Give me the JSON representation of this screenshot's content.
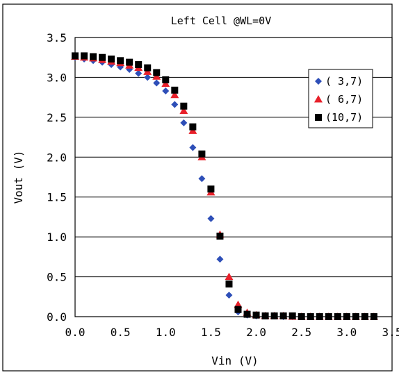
{
  "chart_data": {
    "type": "scatter",
    "title": "Left Cell @WL=0V",
    "xlabel": "Vin (V)",
    "ylabel": "Vout (V)",
    "xlim": [
      0,
      3.5
    ],
    "ylim": [
      0,
      3.5
    ],
    "x_ticks": [
      "0.0",
      "0.5",
      "1.0",
      "1.5",
      "2.0",
      "2.5",
      "3.0",
      "3.5"
    ],
    "y_ticks": [
      "0.0",
      "0.5",
      "1.0",
      "1.5",
      "2.0",
      "2.5",
      "3.0",
      "3.5"
    ],
    "grid": "horizontal",
    "legend_position": "right",
    "series": [
      {
        "name": "( 3,7)",
        "marker": "diamond",
        "color": "#2e4fb8",
        "x": [
          0,
          0.1,
          0.2,
          0.3,
          0.4,
          0.5,
          0.6,
          0.7,
          0.8,
          0.9,
          1.0,
          1.1,
          1.2,
          1.3,
          1.4,
          1.5,
          1.6,
          1.7,
          1.8,
          1.9,
          2.0,
          2.1,
          2.2,
          2.3,
          2.4,
          2.5,
          2.6,
          2.7,
          2.8,
          2.9,
          3.0,
          3.1,
          3.2,
          3.3
        ],
        "y": [
          3.25,
          3.23,
          3.21,
          3.19,
          3.16,
          3.13,
          3.1,
          3.05,
          3.0,
          2.93,
          2.83,
          2.66,
          2.43,
          2.12,
          1.73,
          1.23,
          0.72,
          0.27,
          0.06,
          0.02,
          0.01,
          0.01,
          0.01,
          0.0,
          0.0,
          0.0,
          0.0,
          0.0,
          0.0,
          0.0,
          0.0,
          0.0,
          0.0,
          0.0
        ]
      },
      {
        "name": "( 6,7)",
        "marker": "triangle",
        "color": "#e8202a",
        "x": [
          0,
          0.1,
          0.2,
          0.3,
          0.4,
          0.5,
          0.6,
          0.7,
          0.8,
          0.9,
          1.0,
          1.1,
          1.2,
          1.3,
          1.4,
          1.5,
          1.6,
          1.7,
          1.8,
          1.9,
          2.0,
          2.1,
          2.2,
          2.3,
          2.4,
          2.5,
          2.6,
          2.7,
          2.8,
          2.9,
          3.0,
          3.1,
          3.2,
          3.3
        ],
        "y": [
          3.26,
          3.25,
          3.24,
          3.22,
          3.2,
          3.18,
          3.15,
          3.12,
          3.07,
          3.01,
          2.92,
          2.78,
          2.58,
          2.33,
          2.0,
          1.56,
          1.03,
          0.5,
          0.15,
          0.05,
          0.02,
          0.01,
          0.01,
          0.01,
          0.0,
          0.0,
          0.0,
          0.0,
          0.0,
          0.0,
          0.0,
          0.0,
          0.0,
          0.0
        ]
      },
      {
        "name": "(10,7)",
        "marker": "square",
        "color": "#000000",
        "x": [
          0,
          0.1,
          0.2,
          0.3,
          0.4,
          0.5,
          0.6,
          0.7,
          0.8,
          0.9,
          1.0,
          1.1,
          1.2,
          1.3,
          1.4,
          1.5,
          1.6,
          1.7,
          1.8,
          1.9,
          2.0,
          2.1,
          2.2,
          2.3,
          2.4,
          2.5,
          2.6,
          2.7,
          2.8,
          2.9,
          3.0,
          3.1,
          3.2,
          3.3
        ],
        "y": [
          3.27,
          3.27,
          3.26,
          3.25,
          3.23,
          3.21,
          3.19,
          3.16,
          3.12,
          3.06,
          2.97,
          2.84,
          2.64,
          2.38,
          2.04,
          1.6,
          1.01,
          0.41,
          0.09,
          0.03,
          0.02,
          0.01,
          0.01,
          0.01,
          0.01,
          0.0,
          0.0,
          0.0,
          0.0,
          0.0,
          0.0,
          0.0,
          0.0,
          0.0
        ]
      }
    ]
  }
}
